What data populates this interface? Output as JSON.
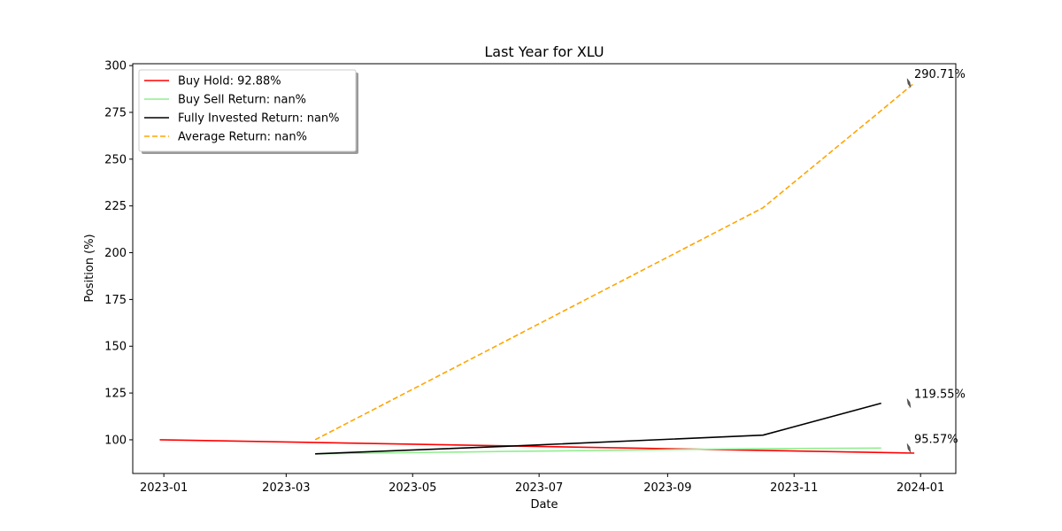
{
  "chart_data": {
    "type": "line",
    "title": "Last Year for XLU",
    "xlabel": "Date",
    "ylabel": "Position (%)",
    "xlim": [
      "2022-12-17",
      "2024-01-18"
    ],
    "ylim": [
      82,
      301
    ],
    "x_ticks": [
      "2023-01",
      "2023-03",
      "2023-05",
      "2023-07",
      "2023-09",
      "2023-11",
      "2024-01"
    ],
    "y_ticks": [
      100,
      125,
      150,
      175,
      200,
      225,
      250,
      275,
      300
    ],
    "grid": false,
    "legend_position": "upper-left",
    "series": [
      {
        "name": "Buy Hold: 92.88%",
        "color": "#ff0000",
        "style": "solid",
        "points": [
          [
            "2022-12-30",
            100.0
          ],
          [
            "2023-12-29",
            92.88
          ]
        ]
      },
      {
        "name": "Buy Sell Return: nan%",
        "color": "#90ee90",
        "style": "solid",
        "points": [
          [
            "2023-03-15",
            92.5
          ],
          [
            "2023-06-15",
            93.8
          ],
          [
            "2023-10-17",
            95.3
          ],
          [
            "2023-12-13",
            95.57
          ]
        ]
      },
      {
        "name": "Fully Invested Return: nan%",
        "color": "#000000",
        "style": "solid",
        "points": [
          [
            "2023-03-15",
            92.5
          ],
          [
            "2023-06-15",
            96.5
          ],
          [
            "2023-10-17",
            102.5
          ],
          [
            "2023-12-13",
            119.55
          ]
        ]
      },
      {
        "name": "Average Return: nan%",
        "color": "#ffa500",
        "style": "dashed",
        "points": [
          [
            "2023-03-15",
            100.0
          ],
          [
            "2023-10-17",
            224.0
          ],
          [
            "2023-12-13",
            276.0
          ],
          [
            "2023-12-29",
            290.71
          ]
        ]
      }
    ],
    "annotations": [
      {
        "text": "290.71%",
        "date": "2023-12-29",
        "value": 290.71
      },
      {
        "text": "119.55%",
        "date": "2023-12-29",
        "value": 119.55
      },
      {
        "text": "95.57%",
        "date": "2023-12-29",
        "value": 95.57
      }
    ]
  }
}
